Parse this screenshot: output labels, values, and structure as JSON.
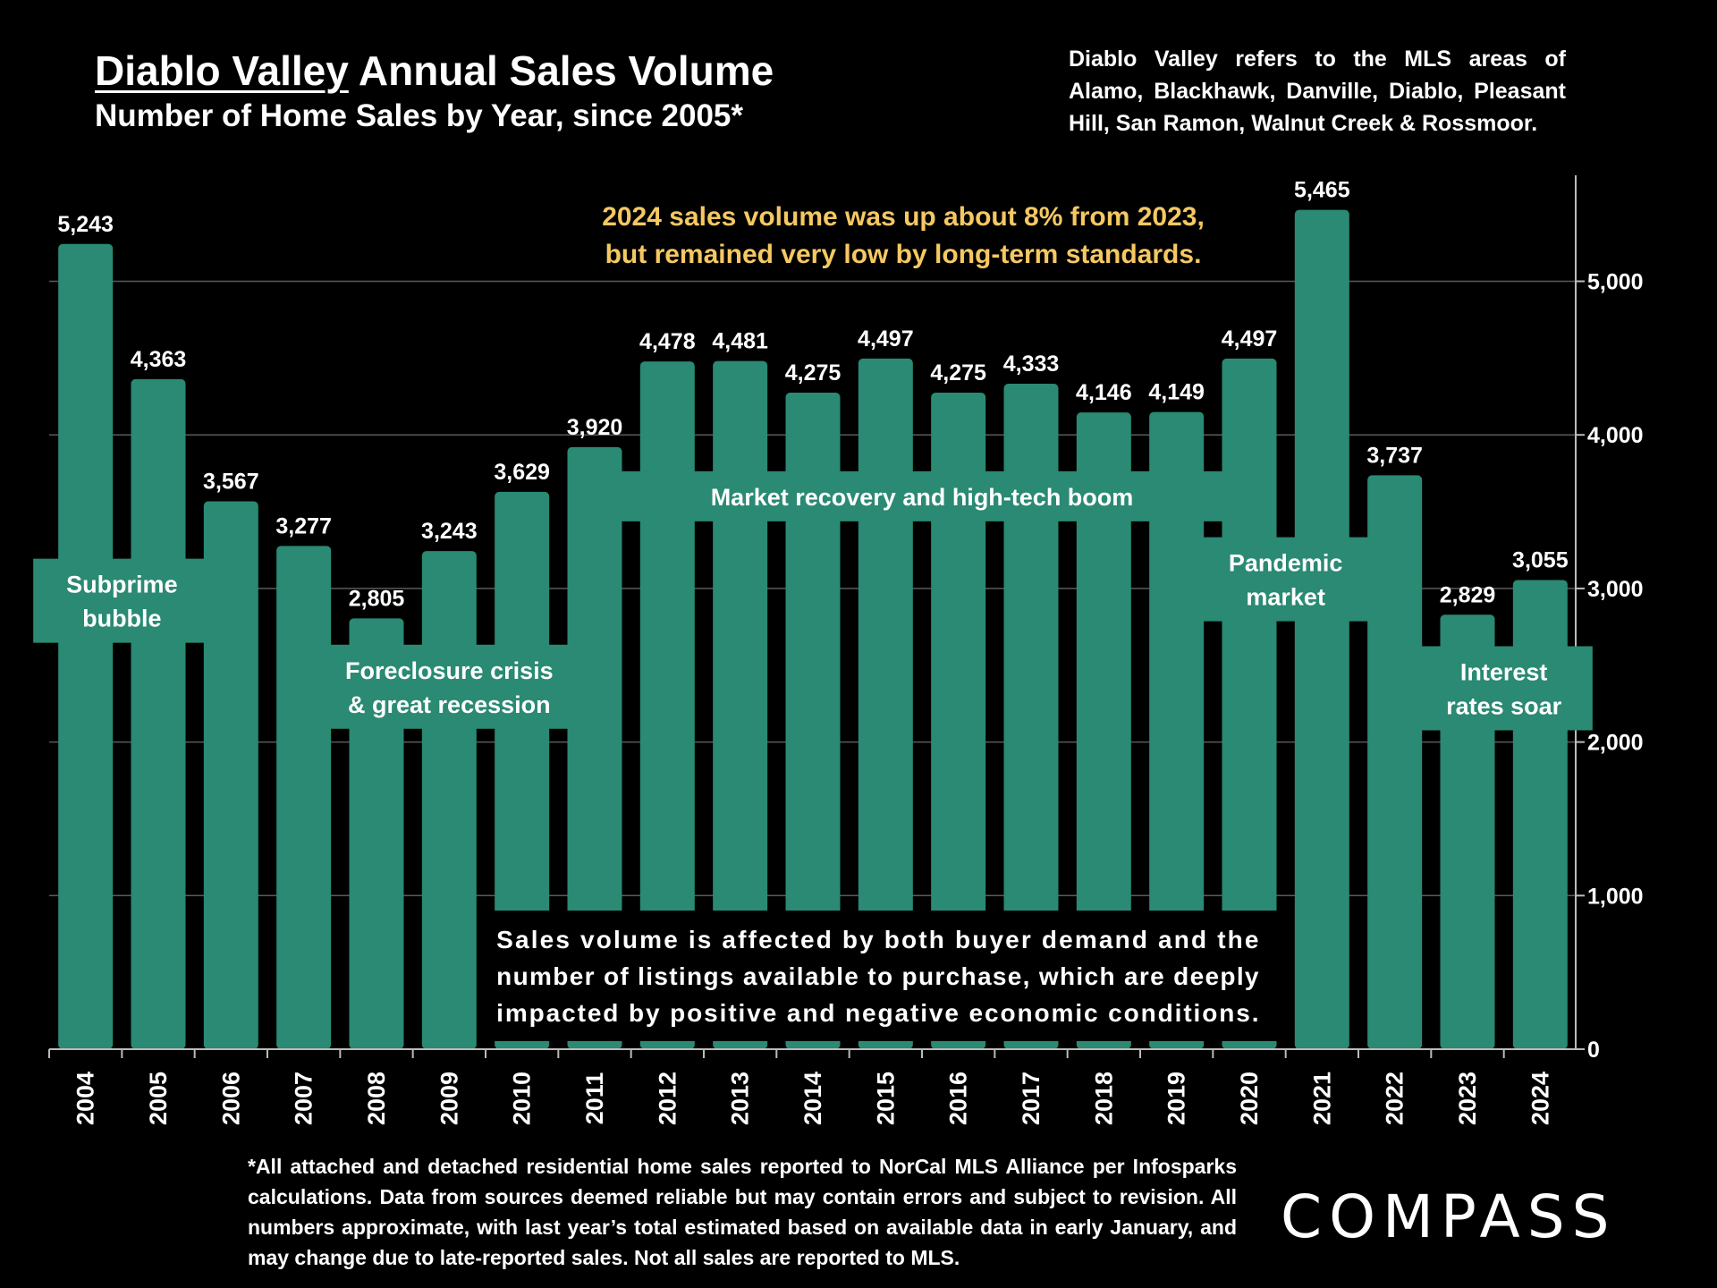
{
  "header": {
    "title_underlined": "Diablo Valley",
    "title_rest": " Annual Sales Volume",
    "subtitle": "Number of Home Sales by Year, since 2005*"
  },
  "side_note": "Diablo Valley refers to the MLS areas of Alamo, Blackhawk, Danville, Diablo, Pleasant Hill, San Ramon, Walnut Creek & Rossmoor.",
  "callout": {
    "line1": "2024 sales volume was up about 8% from 2023,",
    "line2": "but remained very low by long-term standards."
  },
  "footnote": "*All attached and detached residential home sales reported to NorCal MLS Alliance per Infosparks calculations. Data from sources deemed reliable but may contain errors and subject to revision. All numbers approximate, with last year’s total estimated based on available data in early January, and may change due to late-reported sales. Not all sales are reported to MLS.",
  "logo": "COMPASS",
  "colors": {
    "bar": "#2a8a73",
    "background": "#000000",
    "callout": "#f5c862",
    "grid": "#5a5a5a"
  },
  "chart_data": {
    "type": "bar",
    "categories": [
      "2004",
      "2005",
      "2006",
      "2007",
      "2008",
      "2009",
      "2010",
      "2011",
      "2012",
      "2013",
      "2014",
      "2015",
      "2016",
      "2017",
      "2018",
      "2019",
      "2020",
      "2021",
      "2022",
      "2023",
      "2024"
    ],
    "values": [
      5243,
      4363,
      3567,
      3277,
      2805,
      3243,
      3629,
      3920,
      4478,
      4481,
      4275,
      4497,
      4275,
      4333,
      4146,
      4149,
      4497,
      5465,
      3737,
      2829,
      3055
    ],
    "data_labels": [
      "5,243",
      "4,363",
      "3,567",
      "3,277",
      "2,805",
      "3,243",
      "3,629",
      "3,920",
      "4,478",
      "4,481",
      "4,275",
      "4,497",
      "4,275",
      "4,333",
      "4,146",
      "4,149",
      "4,497",
      "5,465",
      "3,737",
      "2,829",
      "3,055"
    ],
    "ylim": [
      0,
      5700
    ],
    "yticks": [
      0,
      1000,
      2000,
      3000,
      4000,
      5000
    ],
    "ytick_labels": [
      "0",
      "1,000",
      "2,000",
      "3,000",
      "4,000",
      "5,000"
    ],
    "y_axis_side": "right",
    "grid": true,
    "annotations": [
      {
        "lines": [
          "Subprime",
          "bubble"
        ],
        "from": "2004",
        "to": "2005",
        "y_center": 2920
      },
      {
        "lines": [
          "Foreclosure crisis",
          "& great recession"
        ],
        "from": "2008",
        "to": "2010",
        "y_center": 2360
      },
      {
        "lines": [
          "Market recovery and high-tech boom"
        ],
        "from": "2012",
        "to": "2019",
        "y_center": 3600
      },
      {
        "lines": [
          "Pandemic",
          "market"
        ],
        "from": "2020",
        "to": "2021",
        "y_center": 3060
      },
      {
        "lines": [
          "Interest",
          "rates soar"
        ],
        "from": "2023",
        "to": "2024",
        "y_center": 2350
      }
    ],
    "info_box": {
      "lines": [
        "Sales volume is affected by both buyer demand and the",
        "number of listings available to purchase, which are deeply",
        "impacted by positive and negative economic conditions."
      ],
      "from": "2010",
      "to": "2020"
    }
  }
}
